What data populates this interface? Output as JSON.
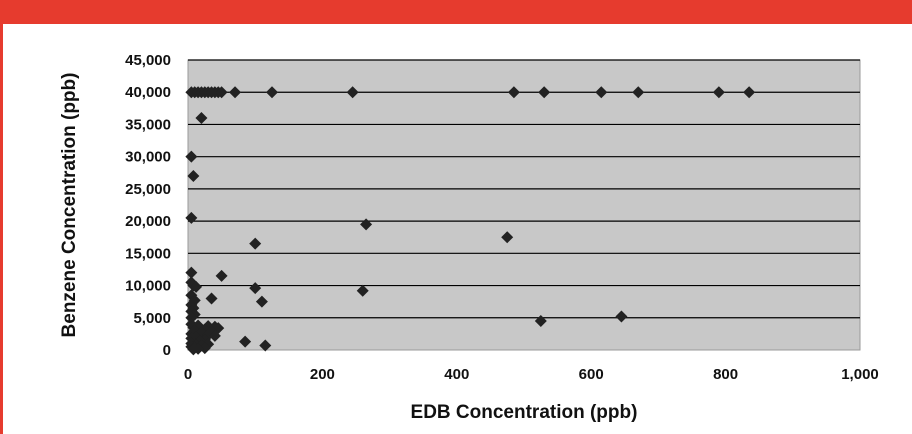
{
  "colors": {
    "accent_bar": "#e63b2e",
    "plot_background": "#c8c8c8",
    "gridline": "#000000",
    "marker": "#222222"
  },
  "chart_data": {
    "type": "scatter",
    "title": "",
    "xlabel": "EDB Concentration (ppb)",
    "ylabel": "Benzene Concentration (ppb)",
    "xlim": [
      0,
      1000
    ],
    "ylim": [
      0,
      45000
    ],
    "x_tick_labels": [
      "0",
      "200",
      "400",
      "600",
      "800",
      "1,000"
    ],
    "y_tick_labels": [
      "0",
      "5,000",
      "10,000",
      "15,000",
      "20,000",
      "25,000",
      "30,000",
      "35,000",
      "40,000",
      "45,000"
    ],
    "grid": "horizontal",
    "legend": "none",
    "marker": "diamond",
    "series": [
      {
        "points": [
          [
            5,
            40000
          ],
          [
            10,
            40000
          ],
          [
            15,
            40000
          ],
          [
            20,
            40000
          ],
          [
            25,
            40000
          ],
          [
            30,
            40000
          ],
          [
            35,
            40000
          ],
          [
            40,
            40000
          ],
          [
            45,
            40000
          ],
          [
            50,
            40000
          ],
          [
            70,
            40000
          ],
          [
            125,
            40000
          ],
          [
            245,
            40000
          ],
          [
            485,
            40000
          ],
          [
            530,
            40000
          ],
          [
            615,
            40000
          ],
          [
            670,
            40000
          ],
          [
            790,
            40000
          ],
          [
            835,
            40000
          ],
          [
            20,
            36000
          ],
          [
            5,
            30000
          ],
          [
            8,
            27000
          ],
          [
            5,
            20500
          ],
          [
            265,
            19500
          ],
          [
            475,
            17500
          ],
          [
            100,
            16500
          ],
          [
            5,
            12000
          ],
          [
            50,
            11500
          ],
          [
            5,
            10500
          ],
          [
            8,
            10000
          ],
          [
            12,
            9800
          ],
          [
            100,
            9600
          ],
          [
            260,
            9200
          ],
          [
            5,
            8500
          ],
          [
            35,
            8000
          ],
          [
            10,
            7700
          ],
          [
            110,
            7500
          ],
          [
            5,
            7000
          ],
          [
            8,
            6500
          ],
          [
            5,
            6000
          ],
          [
            10,
            5500
          ],
          [
            645,
            5200
          ],
          [
            5,
            5000
          ],
          [
            525,
            4500
          ],
          [
            5,
            4000
          ],
          [
            15,
            3800
          ],
          [
            30,
            3700
          ],
          [
            40,
            3600
          ],
          [
            8,
            3500
          ],
          [
            45,
            3400
          ],
          [
            25,
            3200
          ],
          [
            10,
            3000
          ],
          [
            35,
            2900
          ],
          [
            20,
            2700
          ],
          [
            5,
            2500
          ],
          [
            30,
            2300
          ],
          [
            12,
            2000
          ],
          [
            40,
            2200
          ],
          [
            5,
            1800
          ],
          [
            25,
            1600
          ],
          [
            18,
            1400
          ],
          [
            8,
            1200
          ],
          [
            85,
            1300
          ],
          [
            5,
            1000
          ],
          [
            30,
            900
          ],
          [
            12,
            800
          ],
          [
            20,
            700
          ],
          [
            5,
            500
          ],
          [
            10,
            400
          ],
          [
            25,
            300
          ],
          [
            15,
            200
          ],
          [
            8,
            100
          ],
          [
            115,
            700
          ]
        ]
      }
    ]
  }
}
